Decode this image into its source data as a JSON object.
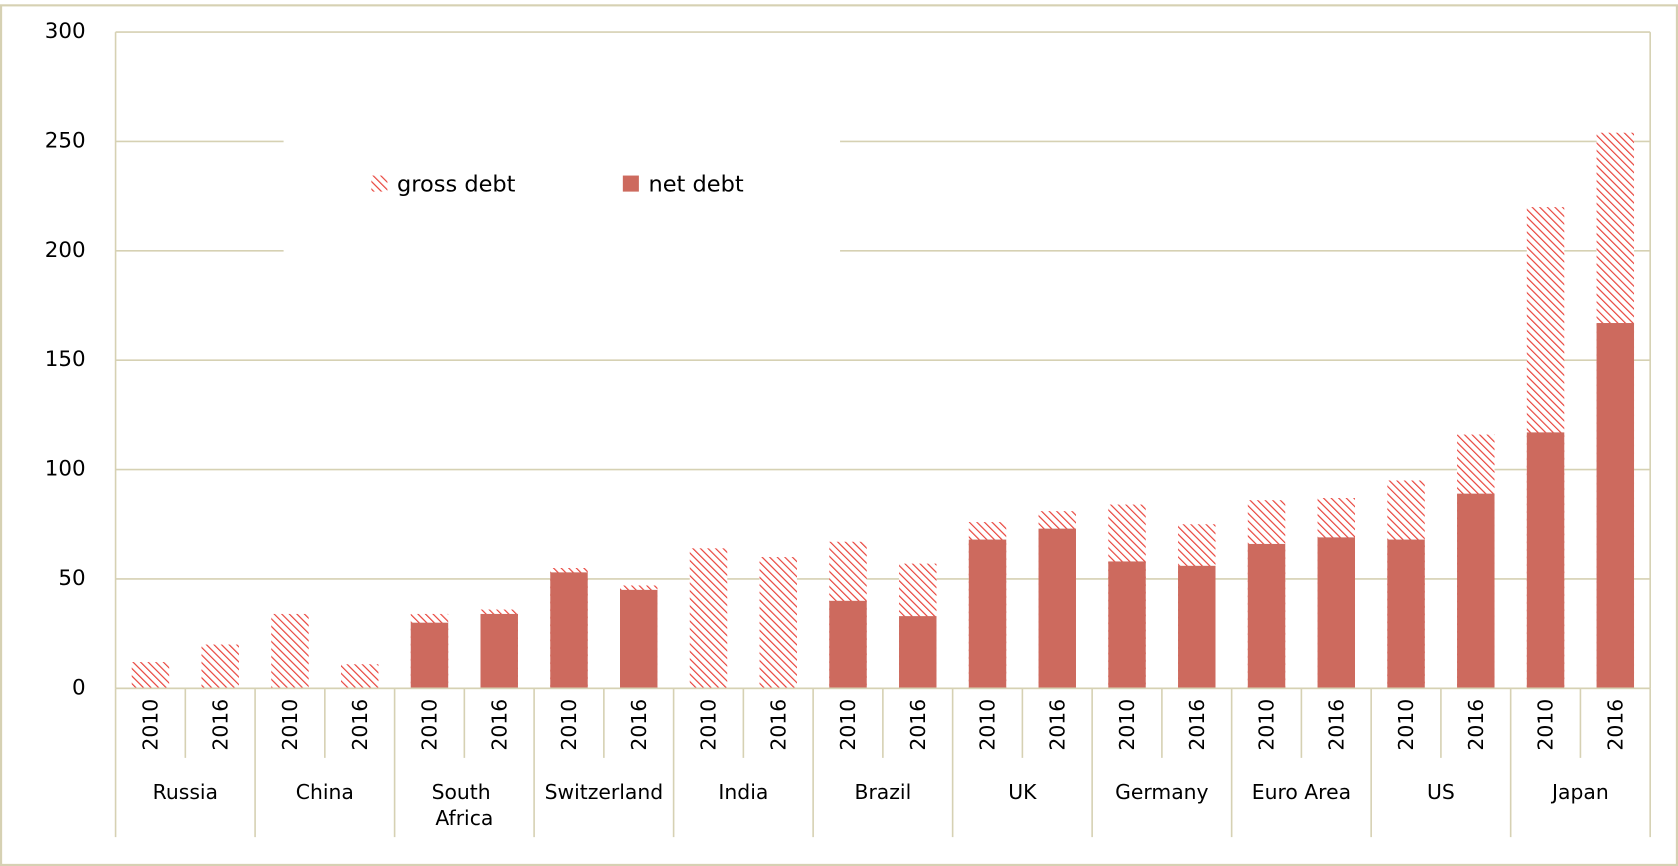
{
  "chart_data": {
    "type": "bar",
    "categories": [
      "2010",
      "2016",
      "2010",
      "2016",
      "2010",
      "2016",
      "2010",
      "2016",
      "2010",
      "2016",
      "2010",
      "2016",
      "2010",
      "2016",
      "2010",
      "2016",
      "2010",
      "2016",
      "2010",
      "2016",
      "2010",
      "2016"
    ],
    "groups": [
      "Russia",
      "China",
      "South Africa",
      "Switzerland",
      "India",
      "Brazil",
      "UK",
      "Germany",
      "Euro Area",
      "US",
      "Japan"
    ],
    "series": [
      {
        "name": "gross debt",
        "color": "#e8423a",
        "pattern": "hatch",
        "values": [
          12,
          20,
          34,
          11,
          34,
          36,
          55,
          47,
          64,
          60,
          67,
          57,
          76,
          81,
          84,
          75,
          86,
          87,
          95,
          116,
          220,
          254
        ]
      },
      {
        "name": "net debt",
        "color": "#cd6a5e",
        "values": [
          null,
          null,
          null,
          null,
          30,
          34,
          53,
          45,
          null,
          null,
          40,
          33,
          68,
          73,
          58,
          56,
          66,
          69,
          68,
          89,
          117,
          167
        ]
      }
    ],
    "ylim": [
      0,
      300
    ],
    "yticks": [
      0,
      50,
      100,
      150,
      200,
      250,
      300
    ],
    "grid": true,
    "legend": "upper left"
  }
}
